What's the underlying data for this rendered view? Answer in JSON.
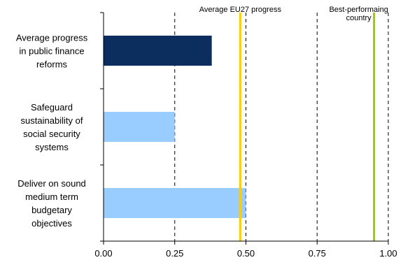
{
  "chart_data": {
    "type": "bar",
    "orientation": "horizontal",
    "categories": [
      [
        "Average progress",
        "in public finance",
        "reforms"
      ],
      [
        "Safeguard",
        "sustainability of",
        "social security",
        "systems"
      ],
      [
        "Deliver on sound",
        "medium term",
        "budgetary",
        "objectives"
      ]
    ],
    "values": [
      0.38,
      0.25,
      0.5
    ],
    "bar_colors": [
      "#0b2e5e",
      "#99ccff",
      "#99ccff"
    ],
    "xlim": [
      0,
      1.0
    ],
    "xticks": [
      "0.00",
      "0.25",
      "0.50",
      "0.75",
      "1.00"
    ],
    "xtick_values": [
      0,
      0.25,
      0.5,
      0.75,
      1.0
    ],
    "grid": "vertical dashed",
    "reference_lines": [
      {
        "label": [
          "Average EU27 progress"
        ],
        "value": 0.48,
        "color": "#ffcc00"
      },
      {
        "label": [
          "Best-performaing",
          "country"
        ],
        "value": 0.95,
        "color": "#99cc00"
      }
    ],
    "title": "",
    "xlabel": "",
    "ylabel": ""
  }
}
